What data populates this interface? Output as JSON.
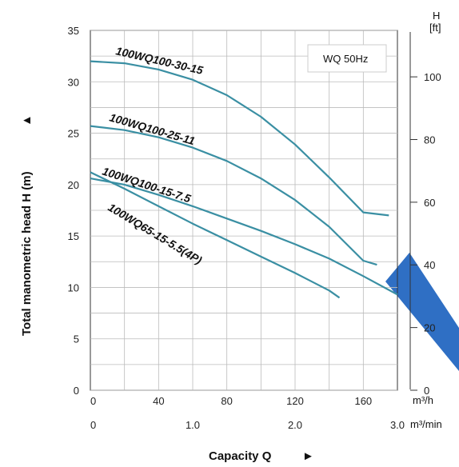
{
  "chart_data": {
    "type": "line",
    "legend_box": "WQ  50Hz",
    "ylabel": "Total manometric head H (m)",
    "xlabel": "Capacity Q",
    "ylabel_arrow": "▲",
    "xlabel_arrow": "►",
    "x_unit": "m³/h",
    "x2_unit": "m³/min",
    "y2_unit_top": "H",
    "y2_unit_bottom": "[ft]",
    "xlim": [
      0,
      180
    ],
    "ylim": [
      0,
      35
    ],
    "x_ticks": [
      "0",
      "40",
      "80",
      "120",
      "160"
    ],
    "x2_ticks": [
      "0",
      "1.0",
      "2.0",
      "3.0"
    ],
    "y_ticks": [
      "0",
      "5",
      "10",
      "15",
      "20",
      "25",
      "30",
      "35"
    ],
    "y2_ticks": [
      "0",
      "20",
      "40",
      "60",
      "80",
      "100"
    ],
    "grid": true,
    "watermark_color": "#2f6fc4",
    "line_color": "#3a8fa3",
    "series": [
      {
        "name": "100WQ100-30-15",
        "x": [
          0,
          20,
          40,
          60,
          80,
          100,
          120,
          140,
          160,
          175
        ],
        "y": [
          32,
          31.8,
          31.2,
          30.2,
          28.7,
          26.6,
          23.9,
          20.7,
          17.3,
          17.0
        ]
      },
      {
        "name": "100WQ100-25-11",
        "x": [
          0,
          20,
          40,
          60,
          80,
          100,
          120,
          140,
          160,
          168
        ],
        "y": [
          25.7,
          25.3,
          24.6,
          23.6,
          22.3,
          20.6,
          18.5,
          15.9,
          12.6,
          12.2
        ]
      },
      {
        "name": "100WQ100-15-7.5",
        "x": [
          0,
          20,
          40,
          60,
          80,
          100,
          120,
          140,
          160,
          180
        ],
        "y": [
          20.6,
          20.0,
          19.0,
          17.9,
          16.7,
          15.5,
          14.2,
          12.8,
          11.1,
          9.3
        ]
      },
      {
        "name": "100WQ65-15-5.5(4P)",
        "x": [
          0,
          20,
          40,
          60,
          80,
          100,
          120,
          140,
          146
        ],
        "y": [
          21.2,
          19.6,
          17.9,
          16.2,
          14.6,
          13.0,
          11.4,
          9.7,
          9.0
        ]
      }
    ]
  }
}
